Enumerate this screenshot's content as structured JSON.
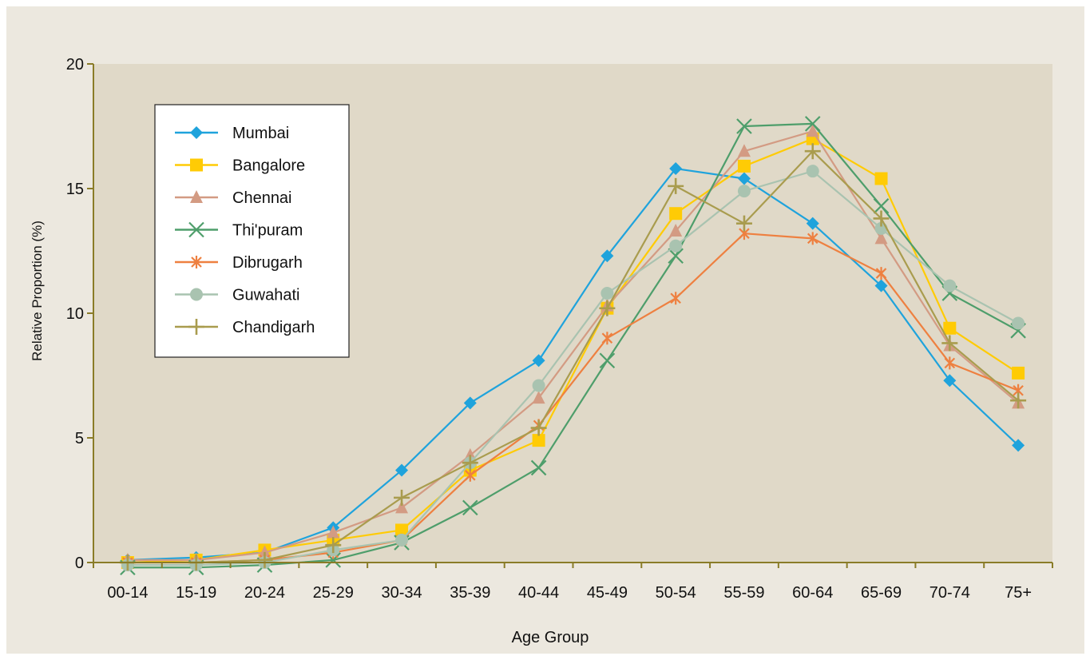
{
  "chart_data": {
    "type": "line",
    "title": "",
    "xlabel": "Age Group",
    "ylabel": "Relative Proportion (%)",
    "ylim": [
      0,
      20
    ],
    "yticks": [
      0,
      5,
      10,
      15,
      20
    ],
    "grid": false,
    "legend_position": "top-left",
    "colors": {
      "page_background": "#ECE8DF",
      "plot_background": "#E0D9C8",
      "axis": "#8A7C28"
    },
    "categories": [
      "00-14",
      "15-19",
      "20-24",
      "25-29",
      "30-34",
      "35-39",
      "40-44",
      "45-49",
      "50-54",
      "55-59",
      "60-64",
      "65-69",
      "70-74",
      "75+"
    ],
    "series": [
      {
        "name": "Mumbai",
        "color": "#1FA3DC",
        "marker": "diamond",
        "values": [
          0.1,
          0.2,
          0.4,
          1.4,
          3.7,
          6.4,
          8.1,
          12.3,
          15.8,
          15.4,
          13.6,
          11.1,
          7.3,
          4.7
        ]
      },
      {
        "name": "Bangalore",
        "color": "#FFCB05",
        "marker": "square",
        "values": [
          0.0,
          0.1,
          0.5,
          0.9,
          1.3,
          3.7,
          4.9,
          10.2,
          14.0,
          15.9,
          17.0,
          15.4,
          9.4,
          7.6
        ]
      },
      {
        "name": "Chennai",
        "color": "#D39B83",
        "marker": "triangle",
        "values": [
          0.1,
          0.1,
          0.4,
          1.2,
          2.2,
          4.3,
          6.6,
          10.3,
          13.3,
          16.5,
          17.3,
          13.0,
          8.7,
          6.4
        ]
      },
      {
        "name": "Thi'puram",
        "color": "#4E9E6B",
        "marker": "x",
        "values": [
          -0.2,
          -0.2,
          -0.1,
          0.1,
          0.8,
          2.2,
          3.8,
          8.1,
          12.3,
          17.5,
          17.6,
          14.3,
          10.8,
          9.3
        ]
      },
      {
        "name": "Dibrugarh",
        "color": "#EE8040",
        "marker": "asterisk",
        "values": [
          0.0,
          0.0,
          0.1,
          0.4,
          0.9,
          3.5,
          5.5,
          9.0,
          10.6,
          13.2,
          13.0,
          11.6,
          8.0,
          6.9
        ]
      },
      {
        "name": "Guwahati",
        "color": "#A9C3B0",
        "marker": "circle",
        "values": [
          -0.1,
          -0.1,
          0.0,
          0.5,
          0.9,
          4.0,
          7.1,
          10.8,
          12.7,
          14.9,
          15.7,
          13.4,
          11.1,
          9.6
        ]
      },
      {
        "name": "Chandigarh",
        "color": "#A99C4E",
        "marker": "plus",
        "values": [
          0.0,
          0.0,
          0.1,
          0.7,
          2.6,
          4.0,
          5.4,
          10.2,
          15.1,
          13.6,
          16.5,
          13.8,
          8.8,
          6.5
        ]
      }
    ]
  }
}
